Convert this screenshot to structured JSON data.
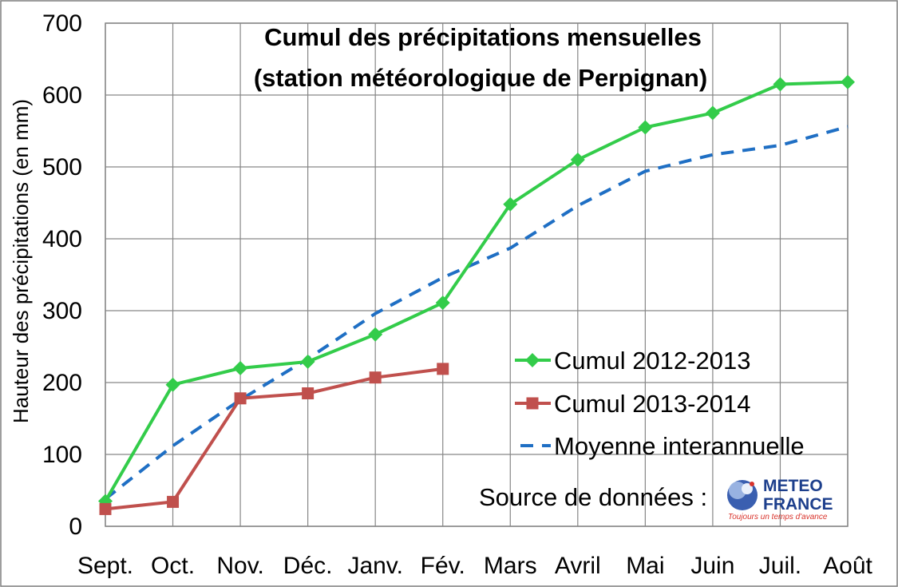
{
  "chart_data": {
    "type": "line",
    "title": [
      "Cumul des précipitations mensuelles",
      "(station météorologique de Perpignan)"
    ],
    "ylabel": "Hauteur des précipitations (en mm)",
    "xlabel": "",
    "ylim": [
      0,
      700
    ],
    "yticks": [
      "0",
      "100",
      "200",
      "300",
      "400",
      "500",
      "600",
      "700"
    ],
    "categories": [
      "Sept.",
      "Oct.",
      "Nov.",
      "Déc.",
      "Janv.",
      "Fév.",
      "Mars",
      "Avril",
      "Mai",
      "Juin",
      "Juil.",
      "Août"
    ],
    "grid": true,
    "legend_position": "lower-right",
    "series": [
      {
        "name": "Cumul 2012-2013",
        "color": "#33cc4a",
        "marker": "diamond",
        "dash": "solid",
        "values": [
          35,
          197,
          220,
          229,
          267,
          311,
          448,
          510,
          555,
          575,
          615,
          618
        ]
      },
      {
        "name": "Cumul 2013-2014",
        "color": "#c0504d",
        "marker": "square",
        "dash": "solid",
        "values": [
          24,
          34,
          178,
          185,
          207,
          219,
          null,
          null,
          null,
          null,
          null,
          null
        ]
      },
      {
        "name": "Moyenne interannuelle",
        "color": "#1f6fc4",
        "marker": "none",
        "dash": "dashed",
        "values": [
          38,
          112,
          176,
          233,
          296,
          346,
          387,
          446,
          494,
          517,
          530,
          556
        ]
      }
    ],
    "source": {
      "label": "Source de données :",
      "logo_line1": "METEO",
      "logo_line2": "FRANCE",
      "logo_tagline": "Toujours un temps d'avance",
      "logo_color": "#1d3f8c"
    }
  }
}
